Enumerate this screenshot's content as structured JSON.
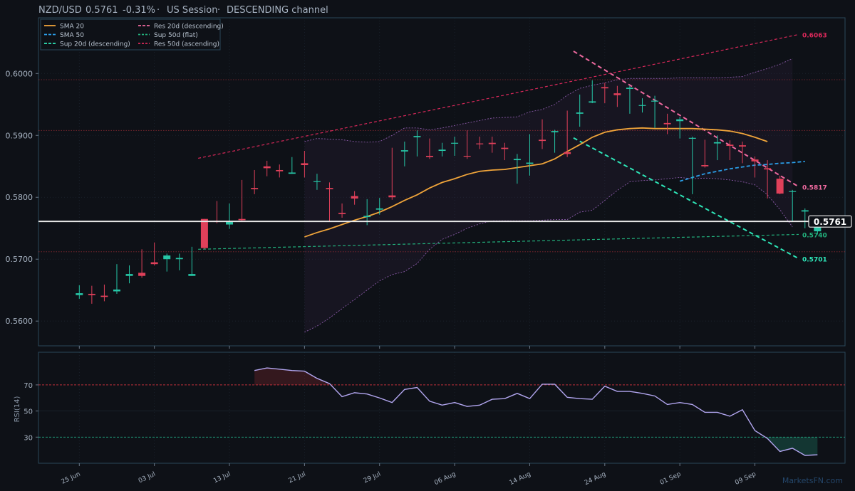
{
  "header": {
    "symbol": "NZD/USD",
    "price": "0.5761",
    "change": "-0.31%",
    "session": "US Session",
    "pattern": "DESCENDING channel"
  },
  "watermark": "MarketsFN.com",
  "colors": {
    "background": "#0e1117",
    "bull": "#26c6a6",
    "bear": "#e0405a",
    "sma20": "#f0a43a",
    "sma50": "#2b9ee8",
    "res_desc": "#f06aa0",
    "sup_desc": "#2ee6b8",
    "sup_flat": "#22b07c",
    "res_asc": "#d9285a",
    "bollinger": "#8a5aa8",
    "rsi": "#b2a6f0",
    "axis": "#2a4858",
    "current_price": "#ffffff"
  },
  "chart_data": [
    {
      "type": "candlestick",
      "title": "",
      "x_tick_labels": [
        "25 Jun",
        "03 Jul",
        "13 Jul",
        "21 Jul",
        "29 Jul",
        "06 Aug",
        "14 Aug",
        "24 Aug",
        "01 Sep",
        "09 Sep"
      ],
      "x_tick_index": [
        0,
        6,
        12,
        18,
        24,
        30,
        36,
        42,
        48,
        54
      ],
      "y_tick_labels": [
        "0.5600",
        "0.5700",
        "0.5800",
        "0.5900",
        "0.6000"
      ],
      "ylim": [
        0.556,
        0.609
      ],
      "candles": [
        [
          0.5642,
          0.5658,
          0.5636,
          0.5645
        ],
        [
          0.5644,
          0.5657,
          0.5628,
          0.5642
        ],
        [
          0.5641,
          0.5659,
          0.5632,
          0.5639
        ],
        [
          0.5648,
          0.5692,
          0.5644,
          0.5651
        ],
        [
          0.5673,
          0.569,
          0.5661,
          0.5676
        ],
        [
          0.5678,
          0.5716,
          0.567,
          0.5673
        ],
        [
          0.5695,
          0.5727,
          0.569,
          0.5692
        ],
        [
          0.57,
          0.5709,
          0.568,
          0.5706
        ],
        [
          0.57,
          0.5709,
          0.5682,
          0.5702
        ],
        [
          0.5673,
          0.572,
          0.5673,
          0.5676
        ],
        [
          0.5765,
          0.5765,
          0.5716,
          0.5718
        ],
        [
          0.5762,
          0.5794,
          0.5758,
          0.576
        ],
        [
          0.5756,
          0.579,
          0.5749,
          0.576
        ],
        [
          0.5765,
          0.5828,
          0.5762,
          0.5763
        ],
        [
          0.5815,
          0.5844,
          0.5805,
          0.5813
        ],
        [
          0.585,
          0.5859,
          0.5834,
          0.5847
        ],
        [
          0.5844,
          0.5853,
          0.5832,
          0.5842
        ],
        [
          0.5838,
          0.5865,
          0.5838,
          0.584
        ],
        [
          0.5855,
          0.5875,
          0.5832,
          0.5852
        ],
        [
          0.5825,
          0.5838,
          0.5812,
          0.5826
        ],
        [
          0.5815,
          0.5824,
          0.5762,
          0.5813
        ],
        [
          0.5775,
          0.579,
          0.5767,
          0.5773
        ],
        [
          0.5802,
          0.581,
          0.5788,
          0.5798
        ],
        [
          0.5768,
          0.5797,
          0.5755,
          0.577
        ],
        [
          0.578,
          0.5799,
          0.5772,
          0.5782
        ],
        [
          0.5803,
          0.588,
          0.5796,
          0.58
        ],
        [
          0.5874,
          0.589,
          0.585,
          0.5876
        ],
        [
          0.5897,
          0.5908,
          0.5866,
          0.5899
        ],
        [
          0.5867,
          0.5895,
          0.5862,
          0.5865
        ],
        [
          0.5875,
          0.5888,
          0.5866,
          0.5877
        ],
        [
          0.5887,
          0.5898,
          0.5867,
          0.5888
        ],
        [
          0.5867,
          0.5908,
          0.5862,
          0.5866
        ],
        [
          0.5887,
          0.5898,
          0.5878,
          0.5886
        ],
        [
          0.5888,
          0.5898,
          0.5872,
          0.5886
        ],
        [
          0.588,
          0.5888,
          0.586,
          0.5878
        ],
        [
          0.586,
          0.587,
          0.5822,
          0.5862
        ],
        [
          0.5854,
          0.5902,
          0.5835,
          0.5856
        ],
        [
          0.5893,
          0.5926,
          0.5878,
          0.5891
        ],
        [
          0.5905,
          0.5909,
          0.5872,
          0.5907
        ],
        [
          0.5873,
          0.594,
          0.5865,
          0.587
        ],
        [
          0.5935,
          0.5966,
          0.5914,
          0.5937
        ],
        [
          0.5953,
          0.5989,
          0.5952,
          0.5955
        ],
        [
          0.5978,
          0.5985,
          0.5952,
          0.5976
        ],
        [
          0.5968,
          0.598,
          0.5946,
          0.5965
        ],
        [
          0.5975,
          0.598,
          0.5935,
          0.5977
        ],
        [
          0.5948,
          0.596,
          0.5937,
          0.5949
        ],
        [
          0.5955,
          0.5964,
          0.5912,
          0.5956
        ],
        [
          0.592,
          0.5935,
          0.5902,
          0.5918
        ],
        [
          0.5923,
          0.593,
          0.5895,
          0.5926
        ],
        [
          0.5895,
          0.5898,
          0.5805,
          0.5896
        ],
        [
          0.5852,
          0.5893,
          0.5848,
          0.585
        ],
        [
          0.5887,
          0.59,
          0.586,
          0.5889
        ],
        [
          0.5885,
          0.5892,
          0.586,
          0.5883
        ],
        [
          0.5884,
          0.589,
          0.5855,
          0.5882
        ],
        [
          0.5861,
          0.5866,
          0.5832,
          0.5858
        ],
        [
          0.5847,
          0.586,
          0.5798,
          0.5845
        ],
        [
          0.583,
          0.5835,
          0.5805,
          0.5806
        ],
        [
          0.581,
          0.5812,
          0.5762,
          0.581
        ],
        [
          0.5777,
          0.5782,
          0.575,
          0.5779
        ],
        [
          0.5745,
          0.5768,
          0.574,
          0.5761
        ]
      ],
      "sma20": [
        [
          18,
          0.5736
        ],
        [
          19,
          0.5743
        ],
        [
          20,
          0.5749
        ],
        [
          21,
          0.5756
        ],
        [
          22,
          0.5763
        ],
        [
          23,
          0.5769
        ],
        [
          24,
          0.5776
        ],
        [
          25,
          0.5785
        ],
        [
          26,
          0.5795
        ],
        [
          27,
          0.5804
        ],
        [
          28,
          0.5815
        ],
        [
          29,
          0.5824
        ],
        [
          30,
          0.583
        ],
        [
          31,
          0.5837
        ],
        [
          32,
          0.5842
        ],
        [
          33,
          0.5844
        ],
        [
          34,
          0.5845
        ],
        [
          35,
          0.5848
        ],
        [
          36,
          0.5851
        ],
        [
          37,
          0.5854
        ],
        [
          38,
          0.5862
        ],
        [
          39,
          0.5874
        ],
        [
          40,
          0.5885
        ],
        [
          41,
          0.5897
        ],
        [
          42,
          0.5905
        ],
        [
          43,
          0.5909
        ],
        [
          44,
          0.5911
        ],
        [
          45,
          0.5912
        ],
        [
          46,
          0.5911
        ],
        [
          47,
          0.5911
        ],
        [
          48,
          0.5911
        ],
        [
          49,
          0.5911
        ],
        [
          50,
          0.591
        ],
        [
          51,
          0.5909
        ],
        [
          52,
          0.5907
        ],
        [
          53,
          0.5903
        ],
        [
          54,
          0.5897
        ],
        [
          55,
          0.589
        ]
      ],
      "sma50": [
        [
          48,
          0.5826
        ],
        [
          49,
          0.5832
        ],
        [
          50,
          0.5838
        ],
        [
          51,
          0.5842
        ],
        [
          52,
          0.5846
        ],
        [
          53,
          0.5849
        ],
        [
          54,
          0.5852
        ],
        [
          55,
          0.5853
        ],
        [
          56,
          0.5855
        ],
        [
          57,
          0.5856
        ],
        [
          58,
          0.5858
        ]
      ],
      "bollinger_upper": [
        [
          18,
          0.589
        ],
        [
          19,
          0.5895
        ],
        [
          20,
          0.5894
        ],
        [
          21,
          0.5893
        ],
        [
          22,
          0.589
        ],
        [
          23,
          0.5889
        ],
        [
          24,
          0.589
        ],
        [
          25,
          0.59
        ],
        [
          26,
          0.5912
        ],
        [
          27,
          0.5912
        ],
        [
          28,
          0.5909
        ],
        [
          29,
          0.5912
        ],
        [
          30,
          0.5916
        ],
        [
          31,
          0.592
        ],
        [
          32,
          0.5924
        ],
        [
          33,
          0.5928
        ],
        [
          34,
          0.5929
        ],
        [
          35,
          0.593
        ],
        [
          36,
          0.5938
        ],
        [
          37,
          0.5942
        ],
        [
          38,
          0.595
        ],
        [
          39,
          0.5965
        ],
        [
          40,
          0.5976
        ],
        [
          41,
          0.5981
        ],
        [
          42,
          0.5985
        ],
        [
          43,
          0.599
        ],
        [
          44,
          0.5992
        ],
        [
          45,
          0.5992
        ],
        [
          46,
          0.5992
        ],
        [
          47,
          0.5992
        ],
        [
          48,
          0.5993
        ],
        [
          49,
          0.5993
        ],
        [
          50,
          0.5993
        ],
        [
          51,
          0.5993
        ],
        [
          52,
          0.5994
        ],
        [
          53,
          0.5995
        ],
        [
          54,
          0.6002
        ],
        [
          55,
          0.6008
        ],
        [
          56,
          0.6015
        ],
        [
          57,
          0.6024
        ]
      ],
      "bollinger_lower": [
        [
          18,
          0.5582
        ],
        [
          19,
          0.5592
        ],
        [
          20,
          0.5605
        ],
        [
          21,
          0.562
        ],
        [
          22,
          0.5635
        ],
        [
          23,
          0.565
        ],
        [
          24,
          0.5665
        ],
        [
          25,
          0.5675
        ],
        [
          26,
          0.568
        ],
        [
          27,
          0.5693
        ],
        [
          28,
          0.5716
        ],
        [
          29,
          0.5732
        ],
        [
          30,
          0.574
        ],
        [
          31,
          0.575
        ],
        [
          32,
          0.5757
        ],
        [
          33,
          0.5762
        ],
        [
          34,
          0.5762
        ],
        [
          35,
          0.5762
        ],
        [
          36,
          0.5762
        ],
        [
          37,
          0.5763
        ],
        [
          38,
          0.5764
        ],
        [
          39,
          0.5764
        ],
        [
          40,
          0.5776
        ],
        [
          41,
          0.5779
        ],
        [
          42,
          0.5795
        ],
        [
          43,
          0.5811
        ],
        [
          44,
          0.5825
        ],
        [
          45,
          0.5827
        ],
        [
          46,
          0.5828
        ],
        [
          47,
          0.583
        ],
        [
          48,
          0.5832
        ],
        [
          49,
          0.583
        ],
        [
          50,
          0.5831
        ],
        [
          51,
          0.583
        ],
        [
          52,
          0.5828
        ],
        [
          53,
          0.5825
        ],
        [
          54,
          0.582
        ],
        [
          55,
          0.5804
        ],
        [
          56,
          0.578
        ],
        [
          57,
          0.5752
        ]
      ],
      "trendlines": [
        {
          "name": "Res 20d (descending)",
          "from": [
            39.5,
            0.6036
          ],
          "to": [
            57.5,
            0.5817
          ],
          "label": "0.5817"
        },
        {
          "name": "Sup 20d (descending)",
          "from": [
            39.5,
            0.5896
          ],
          "to": [
            57.5,
            0.5701
          ],
          "label": "0.5701"
        },
        {
          "name": "Sup 50d (flat)",
          "from": [
            9.5,
            0.5716
          ],
          "to": [
            57.5,
            0.574
          ],
          "label": "0.5740"
        },
        {
          "name": "Res 50d (ascending)",
          "from": [
            9.5,
            0.5863
          ],
          "to": [
            57.5,
            0.6063
          ],
          "label": "0.6063"
        }
      ],
      "horizontal_levels": [
        0.599,
        0.5908,
        0.5712
      ],
      "current_price": 0.5761,
      "current_price_label": "0.5761",
      "legend": [
        {
          "label": "SMA 20",
          "style": "sma20"
        },
        {
          "label": "SMA 50",
          "style": "sma50"
        },
        {
          "label": "Sup 20d (descending)",
          "style": "sup_desc"
        },
        {
          "label": "Res 20d (descending)",
          "style": "res_desc"
        },
        {
          "label": "Sup 50d (flat)",
          "style": "sup_flat"
        },
        {
          "label": "Res 50d (ascending)",
          "style": "res_asc"
        }
      ],
      "legend_position": "top-left"
    },
    {
      "type": "line",
      "ylabel": "RSI(14)",
      "y_tick_labels": [
        "30",
        "50",
        "70"
      ],
      "ylim": [
        10,
        95
      ],
      "overbought": 70,
      "oversold": 30,
      "values": [
        [
          14,
          81
        ],
        [
          15,
          83
        ],
        [
          16,
          82
        ],
        [
          17,
          81
        ],
        [
          18,
          80.5
        ],
        [
          19,
          75
        ],
        [
          20,
          71
        ],
        [
          21,
          61
        ],
        [
          22,
          64
        ],
        [
          23,
          63
        ],
        [
          24,
          60
        ],
        [
          25,
          56.5
        ],
        [
          26,
          66.5
        ],
        [
          27,
          68
        ],
        [
          28,
          57.5
        ],
        [
          29,
          54.5
        ],
        [
          30,
          56.5
        ],
        [
          31,
          53.5
        ],
        [
          32,
          54.5
        ],
        [
          33,
          59
        ],
        [
          34,
          59.5
        ],
        [
          35,
          63.5
        ],
        [
          36,
          59.5
        ],
        [
          37,
          70.5
        ],
        [
          38,
          70.5
        ],
        [
          39,
          60.5
        ],
        [
          40,
          59.5
        ],
        [
          41,
          59
        ],
        [
          42,
          69
        ],
        [
          43,
          65
        ],
        [
          44,
          65
        ],
        [
          45,
          63.5
        ],
        [
          46,
          61.5
        ],
        [
          47,
          55
        ],
        [
          48,
          56.5
        ],
        [
          49,
          55
        ],
        [
          50,
          49
        ],
        [
          51,
          49
        ],
        [
          52,
          46
        ],
        [
          53,
          51
        ],
        [
          54,
          35
        ],
        [
          55,
          29
        ],
        [
          56,
          19
        ],
        [
          57,
          21.5
        ],
        [
          58,
          16
        ],
        [
          59,
          16.5
        ]
      ]
    }
  ]
}
